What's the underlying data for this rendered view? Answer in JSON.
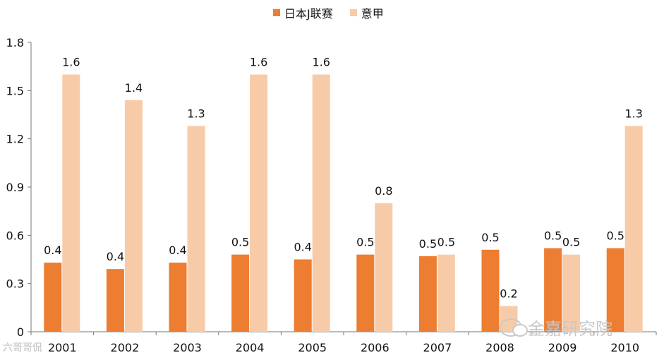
{
  "chart_data": {
    "type": "bar",
    "title": "",
    "xlabel": "",
    "ylabel": "",
    "categories": [
      "2001",
      "2002",
      "2003",
      "2004",
      "2005",
      "2006",
      "2007",
      "2008",
      "2009",
      "2010"
    ],
    "series": [
      {
        "name": "日本J联赛",
        "color": "#ED7D31",
        "values": [
          0.43,
          0.39,
          0.43,
          0.48,
          0.45,
          0.48,
          0.47,
          0.51,
          0.52,
          0.52
        ],
        "labels": [
          "0.4",
          "0.4",
          "0.4",
          "0.5",
          "0.4",
          "0.5",
          "0.5",
          "0.5",
          "0.5",
          "0.5"
        ]
      },
      {
        "name": "意甲",
        "color": "#F8CBA8",
        "values": [
          1.6,
          1.44,
          1.28,
          1.6,
          1.6,
          0.8,
          0.48,
          0.16,
          0.48,
          1.28
        ],
        "labels": [
          "1.6",
          "1.4",
          "1.3",
          "1.6",
          "1.6",
          "0.8",
          "0.5",
          "0.2",
          "0.5",
          "1.3"
        ]
      }
    ],
    "ylim": [
      0,
      1.8
    ],
    "yticks": [
      "0",
      "0.3",
      "0.6",
      "0.9",
      "1.2",
      "1.5",
      "1.8"
    ],
    "ytick_values": [
      0,
      0.3,
      0.6,
      0.9,
      1.2,
      1.5,
      1.8
    ],
    "grid": false,
    "legend_position": "top"
  },
  "watermarks": {
    "left": "六哥哥侃",
    "right": "金嘉研究院"
  }
}
